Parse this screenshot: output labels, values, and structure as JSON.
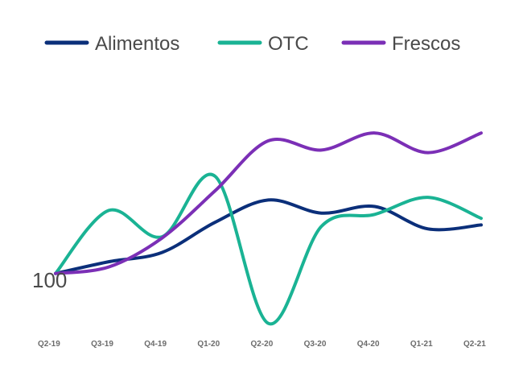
{
  "chart_data": {
    "type": "line",
    "title": "",
    "xlabel": "",
    "ylabel": "",
    "legend_position": "top",
    "base_label": "100",
    "x": [
      "Q2-19",
      "Q3-19",
      "Q4-19",
      "Q1-20",
      "Q2-20",
      "Q3-20",
      "Q4-20",
      "Q1-21",
      "Q2-21"
    ],
    "ylim": [
      96,
      115
    ],
    "grid": false,
    "series": [
      {
        "name": "Alimentos",
        "color": "#0b2f7a",
        "values": [
          100,
          100.9,
          101.6,
          103.9,
          105.6,
          104.6,
          105.1,
          103.4,
          103.7
        ]
      },
      {
        "name": "OTC",
        "color": "#1ab394",
        "values": [
          100,
          104.8,
          102.8,
          107.4,
          96.2,
          103.6,
          104.5,
          105.8,
          104.2
        ]
      },
      {
        "name": "Frescos",
        "color": "#7b2fb6",
        "values": [
          100,
          100.5,
          102.7,
          106.3,
          110.1,
          109.4,
          110.7,
          109.2,
          110.7
        ]
      }
    ]
  }
}
